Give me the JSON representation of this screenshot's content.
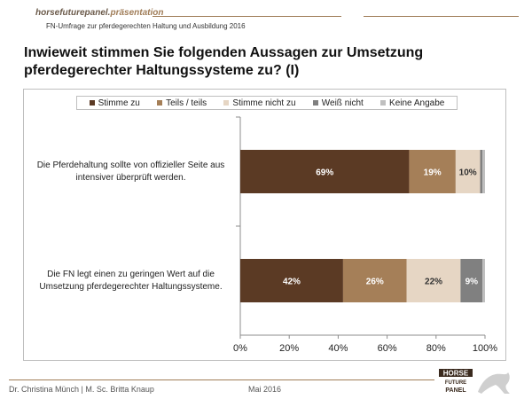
{
  "header": {
    "brand": "horsefuturepanel.",
    "brand_accent": "präsentation",
    "subtitle": "FN-Umfrage zur pferdegerechten Haltung und Ausbildung 2016"
  },
  "title": "Inwieweit stimmen Sie folgenden Aussagen zur Umsetzung pferdegerechter Haltungssysteme zu? (I)",
  "chart_data": {
    "type": "bar",
    "orientation": "horizontal",
    "stacked": true,
    "categories": [
      "Die Pferdehaltung sollte von offizieller Seite aus intensiver überprüft werden.",
      "Die FN legt einen zu geringen Wert auf die Umsetzung pferdegerechter Haltungssysteme."
    ],
    "series": [
      {
        "name": "Stimme zu",
        "values": [
          69,
          42
        ],
        "labels": [
          "69%",
          "42%"
        ],
        "color": "#5b3a24"
      },
      {
        "name": "Teils / teils",
        "values": [
          19,
          26
        ],
        "labels": [
          "19%",
          "26%"
        ],
        "color": "#a57f58"
      },
      {
        "name": "Stimme nicht zu",
        "values": [
          10,
          22
        ],
        "labels": [
          "10%",
          "22%"
        ],
        "color": "#e6d6c4"
      },
      {
        "name": "Weiß nicht",
        "values": [
          1,
          9
        ],
        "labels": [
          "",
          "9%"
        ],
        "color": "#808080"
      },
      {
        "name": "Keine Angabe",
        "values": [
          1,
          1
        ],
        "labels": [
          "",
          ""
        ],
        "color": "#bfbfbf"
      }
    ],
    "xlim": [
      0,
      100
    ],
    "xticks": [
      "0%",
      "20%",
      "40%",
      "60%",
      "80%",
      "100%"
    ],
    "legend": "top",
    "grid": false
  },
  "footer": {
    "authors": "Dr. Christina Münch | M. Sc. Britta Knaup",
    "date": "Mai 2016"
  },
  "logo": {
    "line1": "HORSE",
    "line2": "FUTURE",
    "line3": "PANEL"
  }
}
